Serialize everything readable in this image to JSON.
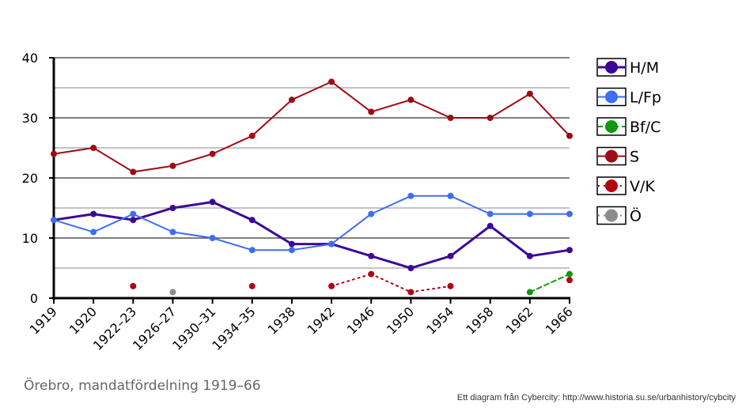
{
  "caption": "Örebro, mandatfördelning 1919–66",
  "credit": "Ett diagram från Cybercity: http://www.historia.su.se/urbanhistory/cybcity",
  "chart_data": {
    "type": "line",
    "title": "",
    "xlabel": "",
    "ylabel": "",
    "ylim": [
      0,
      40
    ],
    "yticks": [
      "0",
      "10",
      "20",
      "30",
      "40"
    ],
    "grid": true,
    "legend_position": "right",
    "categories": [
      "1919",
      "1920",
      "1922–23",
      "1926–27",
      "1930–31",
      "1934–35",
      "1938",
      "1942",
      "1946",
      "1950",
      "1954",
      "1958",
      "1962",
      "1966"
    ],
    "series": [
      {
        "name": "H/M",
        "color": "#3c0896",
        "style": "solid",
        "width": 3,
        "values": [
          13,
          14,
          13,
          15,
          16,
          13,
          9,
          9,
          7,
          5,
          7,
          12,
          7,
          8
        ]
      },
      {
        "name": "L/Fp",
        "color": "#3c6ef0",
        "style": "solid",
        "width": 2,
        "values": [
          13,
          11,
          14,
          11,
          10,
          8,
          8,
          9,
          14,
          17,
          17,
          14,
          14,
          14
        ]
      },
      {
        "name": "Bf/C",
        "color": "#0a9b0a",
        "style": "dashed",
        "width": 2,
        "values": [
          null,
          null,
          null,
          null,
          null,
          null,
          null,
          null,
          null,
          null,
          null,
          null,
          1,
          4
        ]
      },
      {
        "name": "S",
        "color": "#a00a14",
        "style": "solid",
        "width": 2,
        "values": [
          24,
          25,
          21,
          22,
          24,
          27,
          33,
          36,
          31,
          33,
          30,
          30,
          34,
          27
        ]
      },
      {
        "name": "V/K",
        "color": "#b4000f",
        "style": "dotted",
        "width": 2,
        "values": [
          null,
          null,
          2,
          null,
          null,
          2,
          null,
          2,
          4,
          1,
          2,
          null,
          null,
          3
        ]
      },
      {
        "name": "Ö",
        "color": "#8c8c8c",
        "style": "dotted",
        "width": 2,
        "values": [
          null,
          null,
          null,
          1,
          null,
          null,
          null,
          null,
          null,
          null,
          null,
          null,
          null,
          null
        ]
      }
    ]
  }
}
